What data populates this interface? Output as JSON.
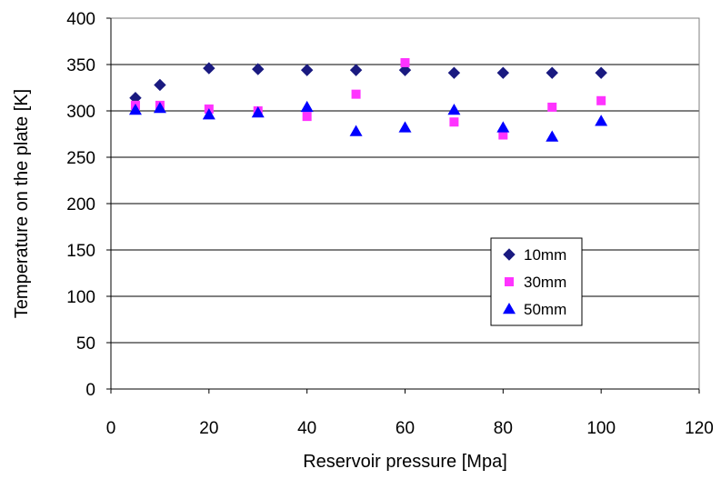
{
  "chart_data": {
    "type": "scatter",
    "xlabel": "Reservoir pressure [Mpa]",
    "ylabel": "Temperature on the plate [K]",
    "xlim": [
      0,
      120
    ],
    "ylim": [
      0,
      400
    ],
    "xticks": [
      0,
      20,
      40,
      60,
      80,
      100,
      120
    ],
    "yticks": [
      0,
      50,
      100,
      150,
      200,
      250,
      300,
      350,
      400
    ],
    "grid": "horizontal",
    "legend_position": "lower-right",
    "series": [
      {
        "name": "10mm",
        "marker": "diamond",
        "color": "#1a1a80",
        "x": [
          5,
          10,
          20,
          30,
          40,
          50,
          60,
          70,
          80,
          90,
          100
        ],
        "y": [
          314,
          328,
          346,
          345,
          344,
          344,
          344,
          341,
          341,
          341,
          341
        ]
      },
      {
        "name": "30mm",
        "marker": "square",
        "color": "#ff33ff",
        "x": [
          5,
          10,
          20,
          30,
          40,
          50,
          60,
          70,
          80,
          90,
          100
        ],
        "y": [
          306,
          306,
          302,
          300,
          294,
          318,
          352,
          288,
          274,
          304,
          311
        ]
      },
      {
        "name": "50mm",
        "marker": "triangle",
        "color": "#0000ff",
        "x": [
          5,
          10,
          20,
          30,
          40,
          50,
          60,
          70,
          80,
          90,
          100
        ],
        "y": [
          301,
          303,
          296,
          298,
          304,
          278,
          282,
          301,
          282,
          272,
          289
        ]
      }
    ]
  }
}
